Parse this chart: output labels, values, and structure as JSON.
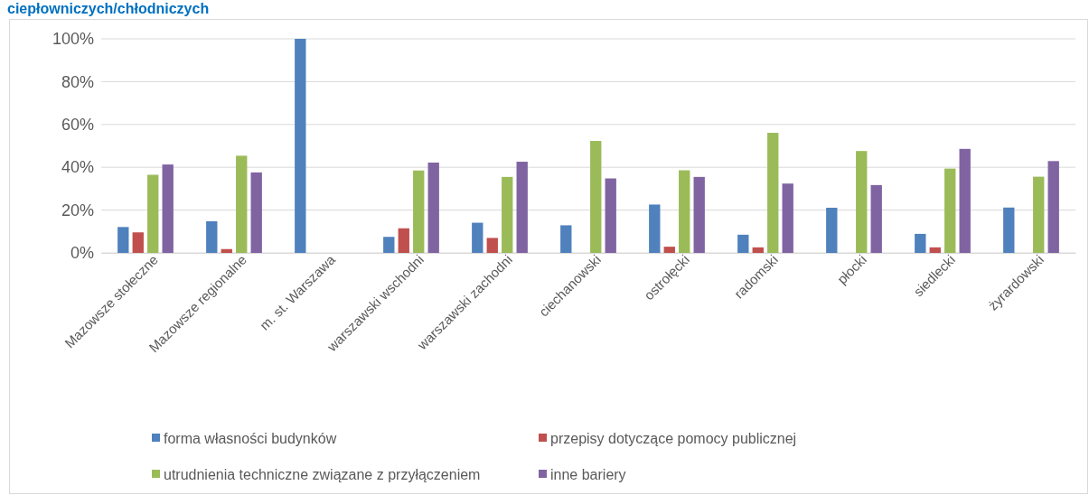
{
  "chart_data": {
    "type": "bar",
    "title": "ciepłowniczych/chłodniczych",
    "categories": [
      "Mazowsze stołeczne",
      "Mazowsze regionalne",
      "m. st. Warszawa",
      "warszawski wschodni",
      "warszawski zachodni",
      "ciechanowski",
      "ostrołęcki",
      "radomski",
      "płocki",
      "siedlecki",
      "żyrardowski"
    ],
    "series": [
      {
        "name": "forma własności budynków",
        "color": "#4f81bd",
        "values": [
          12.1,
          14.8,
          100,
          7.5,
          14.1,
          12.9,
          22.6,
          8.5,
          21.1,
          8.9,
          21.2
        ]
      },
      {
        "name": "przepisy dotyczące pomocy publicznej",
        "color": "#c0504d",
        "values": [
          9.6,
          1.8,
          0,
          11.5,
          7.0,
          0,
          2.9,
          2.6,
          0,
          2.6,
          0
        ]
      },
      {
        "name": "utrudnienia techniczne związane z przyłączeniem",
        "color": "#9bbb59",
        "values": [
          36.5,
          45.4,
          0,
          38.5,
          35.5,
          52.3,
          38.6,
          56.1,
          47.6,
          39.4,
          35.6
        ]
      },
      {
        "name": "inne bariery",
        "color": "#8064a2",
        "values": [
          41.3,
          37.6,
          0,
          42.2,
          42.6,
          34.8,
          35.5,
          32.4,
          31.7,
          48.6,
          42.9
        ]
      }
    ],
    "ylim": [
      0,
      100
    ],
    "yticks": [
      {
        "value": 0,
        "label": "0%"
      },
      {
        "value": 20,
        "label": "20%"
      },
      {
        "value": 40,
        "label": "40%"
      },
      {
        "value": 60,
        "label": "60%"
      },
      {
        "value": 80,
        "label": "80%"
      },
      {
        "value": 100,
        "label": "100%"
      }
    ],
    "grid": "y",
    "legend": "bottom"
  }
}
